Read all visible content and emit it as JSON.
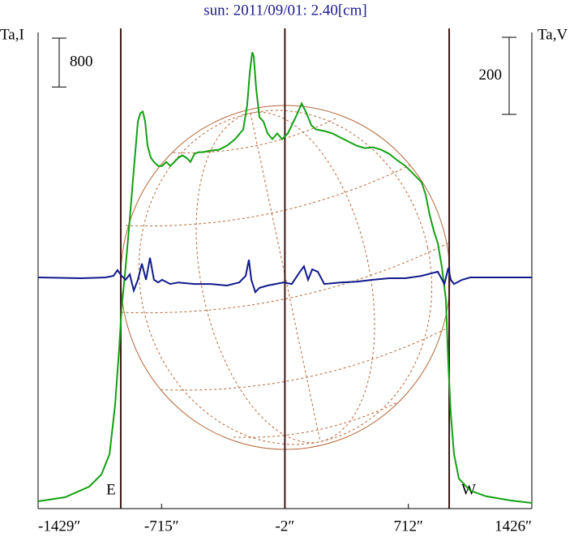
{
  "chart_data": {
    "type": "line",
    "title": "sun: 2011/09/01: 2.40[cm]",
    "ylabel": "Ta,I",
    "y2label": "Ta,V",
    "xlim": [
      -1429,
      1426
    ],
    "xticks": [
      {
        "value": -1429,
        "label": "-1429″"
      },
      {
        "value": -715,
        "label": "-715″"
      },
      {
        "value": -2,
        "label": "-2″"
      },
      {
        "value": 712,
        "label": "712″"
      },
      {
        "value": 1426,
        "label": "1426″"
      }
    ],
    "ylim": [
      0,
      7800
    ],
    "y2lim": [
      -600,
      636
    ],
    "scale_bars": {
      "y": 800,
      "y2": 200
    },
    "vlines": [
      -951,
      -2,
      948
    ],
    "limb_labels": [
      "E",
      "W"
    ],
    "series": [
      {
        "color": "#13a013",
        "axis": "y",
        "x": [
          -1429,
          -1274,
          -1134,
          -1063,
          -1016,
          -984,
          -960,
          -946,
          -923,
          -899,
          -876,
          -852,
          -838,
          -824,
          -810,
          -796,
          -777,
          -759,
          -735,
          -712,
          -688,
          -665,
          -641,
          -618,
          -595,
          -571,
          -548,
          -524,
          -501,
          -477,
          -430,
          -384,
          -337,
          -290,
          -243,
          -220,
          -205,
          -191,
          -182,
          -168,
          -149,
          -126,
          -102,
          -74,
          -46,
          -18,
          15,
          38,
          67,
          95,
          123,
          151,
          179,
          226,
          273,
          320,
          366,
          413,
          460,
          507,
          554,
          601,
          648,
          695,
          742,
          788,
          812,
          835,
          859,
          882,
          906,
          929,
          943,
          957,
          976,
          1004,
          1070,
          1164,
          1304,
          1426
        ],
        "values": [
          120,
          186,
          359,
          559,
          891,
          1689,
          2620,
          3285,
          3950,
          4748,
          5546,
          6344,
          6477,
          6504,
          6344,
          5945,
          5746,
          5679,
          5613,
          5613,
          5679,
          5613,
          5679,
          5746,
          5786,
          5746,
          5679,
          5812,
          5839,
          5839,
          5865,
          5879,
          5945,
          6052,
          6211,
          6610,
          7142,
          7475,
          7408,
          6876,
          6411,
          6344,
          6145,
          6052,
          6145,
          6052,
          6145,
          6278,
          6451,
          6637,
          6477,
          6278,
          6211,
          6185,
          6145,
          6078,
          6012,
          5945,
          5905,
          5919,
          5879,
          5812,
          5706,
          5613,
          5480,
          5347,
          5147,
          4815,
          4549,
          4349,
          3950,
          3418,
          2354,
          1556,
          891,
          492,
          293,
          200,
          133,
          93
        ]
      },
      {
        "color": "#101a8c",
        "axis": "y2",
        "x": [
          -1429,
          -1181,
          -1040,
          -993,
          -970,
          -946,
          -923,
          -899,
          -876,
          -852,
          -829,
          -805,
          -782,
          -759,
          -735,
          -712,
          -665,
          -618,
          -524,
          -430,
          -337,
          -266,
          -229,
          -210,
          -196,
          -173,
          -149,
          -102,
          -56,
          -9,
          38,
          85,
          108,
          132,
          156,
          188,
          226,
          320,
          413,
          507,
          601,
          695,
          788,
          882,
          920,
          943,
          957,
          976,
          1023,
          1070,
          1426
        ],
        "values": [
          0,
          -2,
          0,
          4,
          19,
          4,
          -6,
          8,
          -34,
          -6,
          36,
          -6,
          51,
          -6,
          -13,
          -6,
          -17,
          -13,
          -17,
          -17,
          -21,
          -13,
          4,
          46,
          -6,
          -38,
          -27,
          -21,
          -17,
          -13,
          -17,
          15,
          29,
          -6,
          21,
          15,
          -17,
          -13,
          -11,
          -6,
          -2,
          -2,
          4,
          15,
          -17,
          25,
          -6,
          -17,
          -6,
          0,
          0
        ]
      }
    ]
  }
}
